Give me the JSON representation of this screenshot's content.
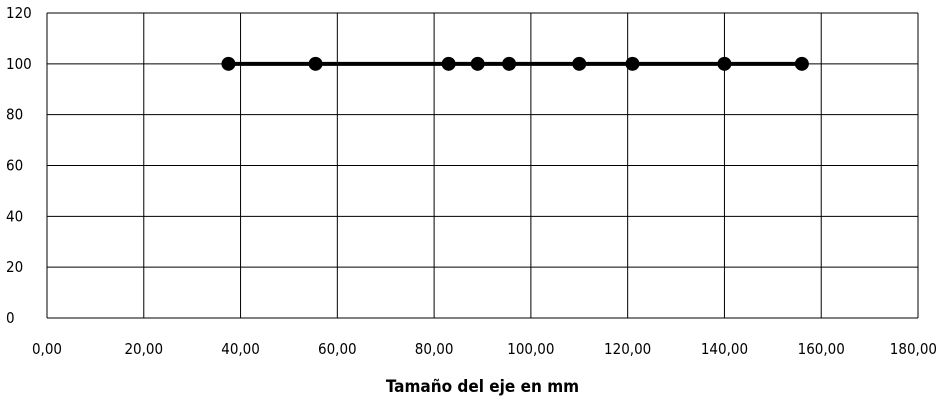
{
  "chart_data": {
    "type": "line",
    "title": "",
    "xlabel": "Tamaño del eje en mm",
    "ylabel": "",
    "xlim": [
      0,
      180
    ],
    "ylim": [
      0,
      120
    ],
    "x_ticks": [
      0,
      20,
      40,
      60,
      80,
      100,
      120,
      140,
      160,
      180
    ],
    "x_tick_labels": [
      "0,00",
      "20,00",
      "40,00",
      "60,00",
      "80,00",
      "100,00",
      "120,00",
      "140,00",
      "160,00",
      "180,00"
    ],
    "y_ticks": [
      0,
      20,
      40,
      60,
      80,
      100,
      120
    ],
    "y_tick_labels": [
      "0",
      "20",
      "40",
      "60",
      "80",
      "100",
      "120"
    ],
    "grid": true,
    "legend": "none",
    "series": [
      {
        "color": "#000000",
        "x": [
          37.5,
          55.5,
          83,
          89,
          95.5,
          110,
          121,
          140,
          156
        ],
        "y": [
          100,
          100,
          100,
          100,
          100,
          100,
          100,
          100,
          100
        ]
      }
    ]
  }
}
